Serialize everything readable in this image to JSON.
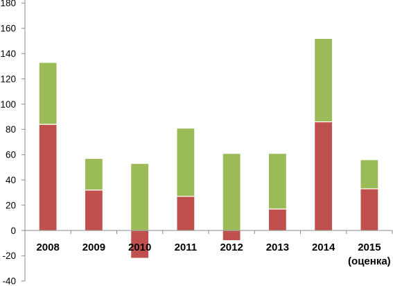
{
  "chart_data": {
    "type": "bar",
    "stacked": true,
    "categories": [
      "2008",
      "2009",
      "2010",
      "2011",
      "2012",
      "2013",
      "2014",
      "2015\n(оценка)"
    ],
    "series": [
      {
        "values": [
          84,
          32,
          -22,
          27,
          -8,
          17,
          86,
          33
        ],
        "color": "#C0504D"
      },
      {
        "values": [
          49,
          25,
          53,
          54,
          61,
          44,
          66,
          23
        ],
        "color": "#9BBB59"
      }
    ],
    "ylim": [
      -40,
      180
    ],
    "yticks": [
      -40,
      -20,
      0,
      20,
      40,
      60,
      80,
      100,
      120,
      140,
      160,
      180
    ],
    "grid": false,
    "legend": "none",
    "axis_color": "#8A8A8A"
  }
}
